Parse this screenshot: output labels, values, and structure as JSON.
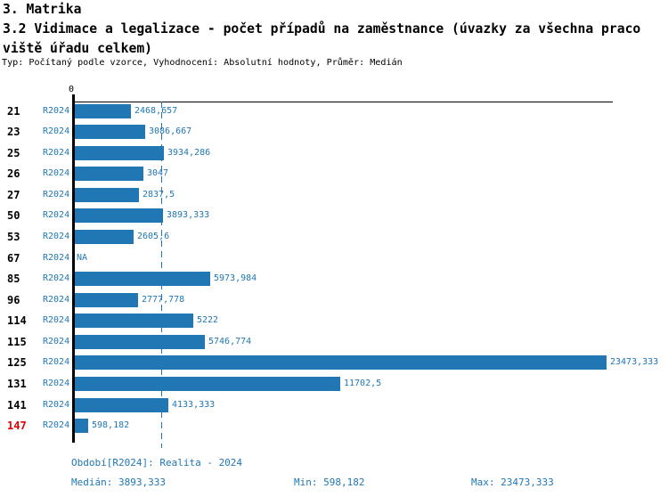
{
  "header": {
    "title_line1": "3. Matrika",
    "title_line2": "3.2 Vidimace a legalizace - počet případů na zaměstnance (úvazky za všechna praco",
    "title_line3": "viště úřadu celkem)",
    "meta": "Typ: Počítaný podle vzorce, Vyhodnocení: Absolutní hodnoty, Průměr: Medián"
  },
  "chart_data": {
    "type": "bar",
    "orientation": "horizontal",
    "title": "3.2 Vidimace a legalizace - počet případů na zaměstnance (úvazky za všechna pracoviště úřadu celkem)",
    "series_name": "R2024",
    "axis": {
      "xmin": 0,
      "xmax": 23473.333,
      "origin_label": "0",
      "grid": false
    },
    "median_value": 3893.333,
    "categories": [
      "21",
      "23",
      "25",
      "26",
      "27",
      "50",
      "53",
      "67",
      "85",
      "96",
      "114",
      "115",
      "125",
      "131",
      "141",
      "147"
    ],
    "rows": [
      {
        "id": "21",
        "period": "R2024",
        "value": 2468.657,
        "display": "2468,657",
        "highlight": false
      },
      {
        "id": "23",
        "period": "R2024",
        "value": 3086.667,
        "display": "3086,667",
        "highlight": false
      },
      {
        "id": "25",
        "period": "R2024",
        "value": 3934.286,
        "display": "3934,286",
        "highlight": false
      },
      {
        "id": "26",
        "period": "R2024",
        "value": 3047,
        "display": "3047",
        "highlight": false
      },
      {
        "id": "27",
        "period": "R2024",
        "value": 2837.5,
        "display": "2837,5",
        "highlight": false
      },
      {
        "id": "50",
        "period": "R2024",
        "value": 3893.333,
        "display": "3893,333",
        "highlight": false
      },
      {
        "id": "53",
        "period": "R2024",
        "value": 2605.6,
        "display": "2605,6",
        "highlight": false
      },
      {
        "id": "67",
        "period": "R2024",
        "value": null,
        "display": "NA",
        "highlight": false
      },
      {
        "id": "85",
        "period": "R2024",
        "value": 5973.984,
        "display": "5973,984",
        "highlight": false
      },
      {
        "id": "96",
        "period": "R2024",
        "value": 2777.778,
        "display": "2777,778",
        "highlight": false
      },
      {
        "id": "114",
        "period": "R2024",
        "value": 5222,
        "display": "5222",
        "highlight": false
      },
      {
        "id": "115",
        "period": "R2024",
        "value": 5746.774,
        "display": "5746,774",
        "highlight": false
      },
      {
        "id": "125",
        "period": "R2024",
        "value": 23473.333,
        "display": "23473,333",
        "highlight": false
      },
      {
        "id": "131",
        "period": "R2024",
        "value": 11702.5,
        "display": "11702,5",
        "highlight": false
      },
      {
        "id": "141",
        "period": "R2024",
        "value": 4133.333,
        "display": "4133,333",
        "highlight": false
      },
      {
        "id": "147",
        "period": "R2024",
        "value": 598.182,
        "display": "598,182",
        "highlight": true
      }
    ],
    "stats": {
      "median": 3893.333,
      "min": 598.182,
      "max": 23473.333
    }
  },
  "footer": {
    "period_info": "Období[R2024]: Realita - 2024",
    "median": "Medián: 3893,333",
    "min": "Min: 598,182",
    "max": "Max: 23473,333"
  },
  "colors": {
    "bar": "#2077b4",
    "blue_text": "#2077b4",
    "highlight_red": "#dd0000",
    "axis_black": "#000000"
  }
}
